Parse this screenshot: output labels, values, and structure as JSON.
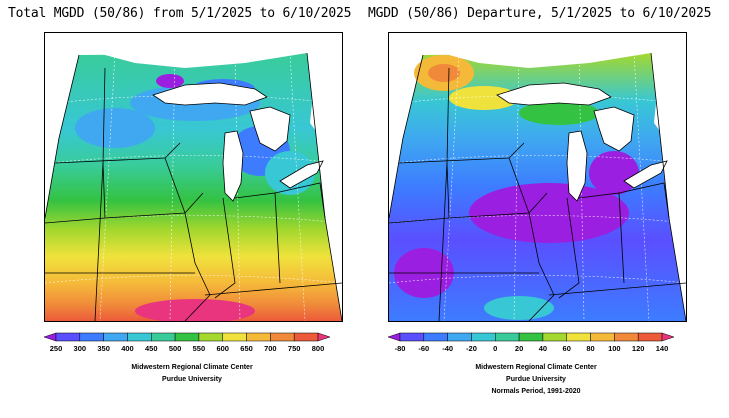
{
  "left_panel": {
    "title": "Total MGDD (50/86) from 5/1/2025 to 6/10/2025",
    "legend": {
      "ticks": [
        "250",
        "300",
        "350",
        "400",
        "450",
        "500",
        "550",
        "600",
        "650",
        "700",
        "750",
        "800"
      ],
      "colors": [
        "#9b1fe0",
        "#5a4fff",
        "#3d7cff",
        "#3fa8f0",
        "#38c7d4",
        "#39cc9a",
        "#34c242",
        "#a4d82e",
        "#f0e23c",
        "#f5b93a",
        "#f08a3a",
        "#ec5a3a",
        "#e8357e"
      ]
    },
    "footer": [
      "Midwestern Regional Climate Center",
      "Purdue University"
    ]
  },
  "right_panel": {
    "title": "MGDD (50/86) Departure, 5/1/2025 to 6/10/2025",
    "legend": {
      "ticks": [
        "-80",
        "-60",
        "-40",
        "-20",
        "0",
        "20",
        "40",
        "60",
        "80",
        "100",
        "120",
        "140"
      ],
      "colors": [
        "#9b1fe0",
        "#5a4fff",
        "#3d7cff",
        "#3fa8f0",
        "#38c7d4",
        "#39cc9a",
        "#34c242",
        "#a4d82e",
        "#f0e23c",
        "#f5b93a",
        "#f08a3a",
        "#ec5a3a",
        "#e8357e"
      ]
    },
    "footer": [
      "Midwestern Regional Climate Center",
      "Purdue University",
      "Normals Period, 1991-2020"
    ]
  }
}
